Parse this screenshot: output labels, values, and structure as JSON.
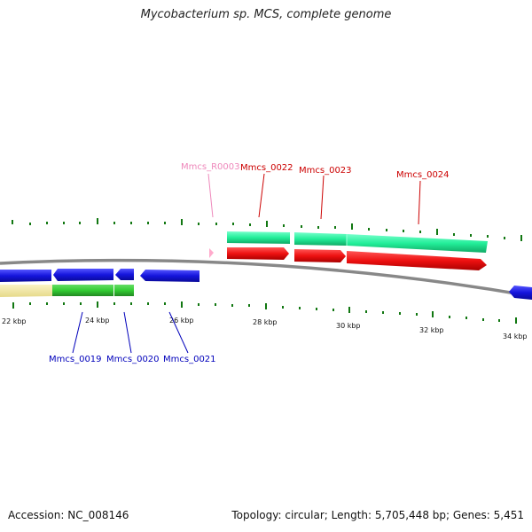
{
  "title": "Mycobacterium sp. MCS, complete genome",
  "footer": {
    "accession": "Accession: NC_008146",
    "summary": "Topology: circular; Length: 5,705,448 bp; Genes: 5,451"
  },
  "colors": {
    "backbone": "#888888",
    "forward_cds": "#ee1111",
    "reverse_cds": "#1515dd",
    "forward_gene": "#22ee99",
    "reverse_gene": "#33cc33",
    "pseudo_gene": "#f2e8a0",
    "rna": "#ff99cc",
    "tick": "#117711",
    "label_forward": "#cc0000",
    "label_reverse": "#0000bb",
    "label_rna": "#ee88bb"
  },
  "scale_labels": [
    "22 kbp",
    "24 kbp",
    "26 kbp",
    "28 kbp",
    "30 kbp",
    "32 kbp",
    "34 kbp"
  ],
  "gene_labels": {
    "Mmcs_R0003": "Mmcs_R0003",
    "Mmcs_0022": "Mmcs_0022",
    "Mmcs_0023": "Mmcs_0023",
    "Mmcs_0024": "Mmcs_0024",
    "Mmcs_0019": "Mmcs_0019",
    "Mmcs_0020": "Mmcs_0020",
    "Mmcs_0021": "Mmcs_0021"
  }
}
